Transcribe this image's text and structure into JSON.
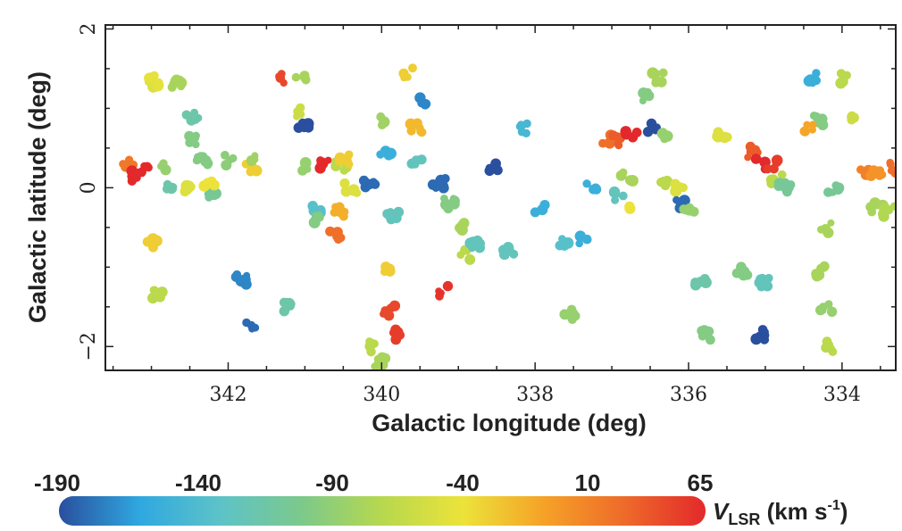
{
  "chart_data": {
    "type": "scatter",
    "xlabel": "Galactic longitude (deg)",
    "ylabel": "Galactic latitude (deg)",
    "xlim": [
      343.6,
      333.3
    ],
    "ylim": [
      -2.3,
      2.05
    ],
    "x_inverted": true,
    "x_ticks": [
      342,
      340,
      338,
      336,
      334
    ],
    "x_tick_labels": [
      "342",
      "340",
      "338",
      "336",
      "334"
    ],
    "y_ticks": [
      2,
      0,
      -2
    ],
    "y_tick_labels": [
      "2",
      "0",
      "−2"
    ],
    "grid": false,
    "colorbar": {
      "variable": "V",
      "subscript": "LSR",
      "unit_text": " (km s",
      "unit_exponent": "-1",
      "unit_close": ")",
      "range": [
        -190,
        65
      ],
      "tick_values": [
        -190,
        -140,
        -90,
        -40,
        10,
        65
      ],
      "tick_labels": [
        "-190",
        "-140",
        "-90",
        "-40",
        "10",
        "65"
      ],
      "colormap": [
        "#2a4f9e",
        "#2fa8e0",
        "#5dc3c8",
        "#7cc98b",
        "#b7d84e",
        "#ece33a",
        "#f5a227",
        "#ee6a2a",
        "#e3292b"
      ]
    },
    "clusters": [
      {
        "l": 343.3,
        "b": 0.3,
        "v": 25
      },
      {
        "l": 343.2,
        "b": 0.15,
        "v": 65
      },
      {
        "l": 343.1,
        "b": 0.25,
        "v": 65
      },
      {
        "l": 342.97,
        "b": 1.3,
        "v": -40
      },
      {
        "l": 342.97,
        "b": 1.35,
        "v": -35
      },
      {
        "l": 342.97,
        "b": -0.7,
        "v": -20
      },
      {
        "l": 342.92,
        "b": -1.35,
        "v": -60
      },
      {
        "l": 342.82,
        "b": 0.27,
        "v": -80
      },
      {
        "l": 342.65,
        "b": 1.3,
        "v": -70
      },
      {
        "l": 342.72,
        "b": 0.0,
        "v": -110
      },
      {
        "l": 342.57,
        "b": 0.02,
        "v": -40
      },
      {
        "l": 342.47,
        "b": 0.9,
        "v": -110
      },
      {
        "l": 342.2,
        "b": -0.1,
        "v": -100
      },
      {
        "l": 342.43,
        "b": 0.6,
        "v": -90
      },
      {
        "l": 342.33,
        "b": 0.35,
        "v": -90
      },
      {
        "l": 342.25,
        "b": 0.05,
        "v": -30
      },
      {
        "l": 341.7,
        "b": 0.25,
        "v": -20
      },
      {
        "l": 342.0,
        "b": 0.35,
        "v": -85
      },
      {
        "l": 341.65,
        "b": 0.35,
        "v": -75
      },
      {
        "l": 341.82,
        "b": -1.15,
        "v": -170
      },
      {
        "l": 341.72,
        "b": -1.75,
        "v": -180
      },
      {
        "l": 341.28,
        "b": 1.38,
        "v": 50
      },
      {
        "l": 341.05,
        "b": 1.38,
        "v": -70
      },
      {
        "l": 341.1,
        "b": 0.95,
        "v": -50
      },
      {
        "l": 341.0,
        "b": 0.75,
        "v": -190
      },
      {
        "l": 341.25,
        "b": -1.5,
        "v": -110
      },
      {
        "l": 340.95,
        "b": 0.28,
        "v": -80
      },
      {
        "l": 340.72,
        "b": 0.28,
        "v": 65
      },
      {
        "l": 340.52,
        "b": 0.28,
        "v": -60
      },
      {
        "l": 340.5,
        "b": 0.35,
        "v": -20
      },
      {
        "l": 340.85,
        "b": -0.25,
        "v": -130
      },
      {
        "l": 340.8,
        "b": -0.4,
        "v": -90
      },
      {
        "l": 340.55,
        "b": -0.3,
        "v": -5
      },
      {
        "l": 340.6,
        "b": -0.6,
        "v": 30
      },
      {
        "l": 340.4,
        "b": 0.0,
        "v": -40
      },
      {
        "l": 340.15,
        "b": 0.05,
        "v": -180
      },
      {
        "l": 339.95,
        "b": 0.85,
        "v": -75
      },
      {
        "l": 339.65,
        "b": 1.45,
        "v": -20
      },
      {
        "l": 339.95,
        "b": 0.45,
        "v": -150
      },
      {
        "l": 339.85,
        "b": -0.35,
        "v": -120
      },
      {
        "l": 339.95,
        "b": -1.05,
        "v": -20
      },
      {
        "l": 339.9,
        "b": -1.55,
        "v": 50
      },
      {
        "l": 339.78,
        "b": -1.85,
        "v": 55
      },
      {
        "l": 340.1,
        "b": -2.0,
        "v": -60
      },
      {
        "l": 340.02,
        "b": -2.2,
        "v": -70
      },
      {
        "l": 339.55,
        "b": 0.3,
        "v": -120
      },
      {
        "l": 339.55,
        "b": 0.75,
        "v": -10
      },
      {
        "l": 339.42,
        "b": 1.1,
        "v": -170
      },
      {
        "l": 339.25,
        "b": 0.05,
        "v": -180
      },
      {
        "l": 339.2,
        "b": -1.3,
        "v": 60
      },
      {
        "l": 339.12,
        "b": -0.2,
        "v": -90
      },
      {
        "l": 339.0,
        "b": -0.5,
        "v": -70
      },
      {
        "l": 338.9,
        "b": -0.85,
        "v": -60
      },
      {
        "l": 338.78,
        "b": -0.7,
        "v": -120
      },
      {
        "l": 338.55,
        "b": 0.25,
        "v": -200
      },
      {
        "l": 338.35,
        "b": -0.8,
        "v": -120
      },
      {
        "l": 338.12,
        "b": 0.75,
        "v": -140
      },
      {
        "l": 337.95,
        "b": -0.25,
        "v": -150
      },
      {
        "l": 337.65,
        "b": -0.7,
        "v": -130
      },
      {
        "l": 337.35,
        "b": -0.65,
        "v": -150
      },
      {
        "l": 337.55,
        "b": -1.6,
        "v": -80
      },
      {
        "l": 337.05,
        "b": 0.6,
        "v": 30
      },
      {
        "l": 337.28,
        "b": 0.0,
        "v": -150
      },
      {
        "l": 336.95,
        "b": 0.6,
        "v": 40
      },
      {
        "l": 336.93,
        "b": -0.1,
        "v": -120
      },
      {
        "l": 336.75,
        "b": 0.65,
        "v": 65
      },
      {
        "l": 336.8,
        "b": 0.15,
        "v": -70
      },
      {
        "l": 336.7,
        "b": -0.2,
        "v": -30
      },
      {
        "l": 336.55,
        "b": 1.15,
        "v": -90
      },
      {
        "l": 336.45,
        "b": 0.75,
        "v": -190
      },
      {
        "l": 336.4,
        "b": 1.38,
        "v": -70
      },
      {
        "l": 336.3,
        "b": 0.65,
        "v": -80
      },
      {
        "l": 336.3,
        "b": 0.05,
        "v": -60
      },
      {
        "l": 336.15,
        "b": 0.0,
        "v": -40
      },
      {
        "l": 336.1,
        "b": -0.2,
        "v": -180
      },
      {
        "l": 336.0,
        "b": -0.3,
        "v": -80
      },
      {
        "l": 335.85,
        "b": -1.2,
        "v": -110
      },
      {
        "l": 335.75,
        "b": -1.85,
        "v": -90
      },
      {
        "l": 335.55,
        "b": 0.65,
        "v": -40
      },
      {
        "l": 335.15,
        "b": 0.45,
        "v": 40
      },
      {
        "l": 335.05,
        "b": 0.3,
        "v": 65
      },
      {
        "l": 334.9,
        "b": 0.3,
        "v": 55
      },
      {
        "l": 335.3,
        "b": -1.05,
        "v": -90
      },
      {
        "l": 335.0,
        "b": -1.2,
        "v": -120
      },
      {
        "l": 335.05,
        "b": -1.85,
        "v": -190
      },
      {
        "l": 334.85,
        "b": 0.1,
        "v": -60
      },
      {
        "l": 334.75,
        "b": 0.0,
        "v": -100
      },
      {
        "l": 334.4,
        "b": 1.38,
        "v": -150
      },
      {
        "l": 334.32,
        "b": 0.85,
        "v": -90
      },
      {
        "l": 334.12,
        "b": 0.0,
        "v": -100
      },
      {
        "l": 334.2,
        "b": -0.5,
        "v": -70
      },
      {
        "l": 334.45,
        "b": 0.75,
        "v": 0
      },
      {
        "l": 334.3,
        "b": -1.05,
        "v": -70
      },
      {
        "l": 334.2,
        "b": -1.5,
        "v": -80
      },
      {
        "l": 334.15,
        "b": -2.0,
        "v": -60
      },
      {
        "l": 333.95,
        "b": 1.38,
        "v": -60
      },
      {
        "l": 333.8,
        "b": 0.85,
        "v": -50
      },
      {
        "l": 333.7,
        "b": 0.2,
        "v": 20
      },
      {
        "l": 333.55,
        "b": 0.15,
        "v": 10
      },
      {
        "l": 333.3,
        "b": 0.25,
        "v": 30
      },
      {
        "l": 333.55,
        "b": -0.25,
        "v": -70
      },
      {
        "l": 333.4,
        "b": -0.3,
        "v": -65
      }
    ]
  }
}
